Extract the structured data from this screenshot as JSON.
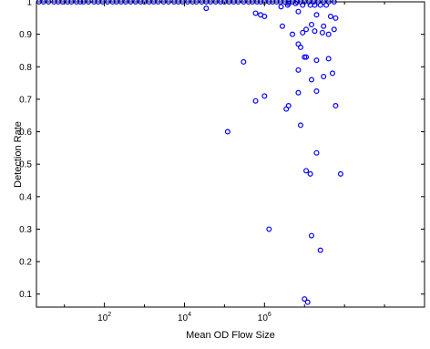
{
  "chart_data": {
    "type": "scatter",
    "xlabel": "Mean OD Flow Size",
    "ylabel": "Detection Rate",
    "x_scale": "log",
    "xlim": [
      2,
      10000000000
    ],
    "ylim": [
      0.06,
      1.0
    ],
    "grid": false,
    "marker_color": "#0000ff",
    "x_ticks": [
      {
        "value": 100,
        "base": "10",
        "exp": "2"
      },
      {
        "value": 10000,
        "base": "10",
        "exp": "4"
      },
      {
        "value": 1000000,
        "base": "10",
        "exp": "6"
      }
    ],
    "y_ticks": [
      {
        "value": 0.1,
        "label": "0.1"
      },
      {
        "value": 0.2,
        "label": "0.2"
      },
      {
        "value": 0.3,
        "label": "0.3"
      },
      {
        "value": 0.4,
        "label": "0.4"
      },
      {
        "value": 0.5,
        "label": "0.5"
      },
      {
        "value": 0.6,
        "label": "0.6"
      },
      {
        "value": 0.7,
        "label": "0.7"
      },
      {
        "value": 0.8,
        "label": "0.8"
      },
      {
        "value": 0.9,
        "label": "0.9"
      },
      {
        "value": 1.0,
        "label": "1"
      }
    ],
    "series": [
      {
        "points": [
          [
            2.3,
            1.0
          ],
          [
            3.0,
            1.0
          ],
          [
            4.0,
            1.0
          ],
          [
            5.5,
            1.0
          ],
          [
            7.0,
            1.0
          ],
          [
            9.0,
            1.0
          ],
          [
            12,
            1.0
          ],
          [
            15,
            1.0
          ],
          [
            20,
            1.0
          ],
          [
            25,
            1.0
          ],
          [
            30,
            1.0
          ],
          [
            40,
            1.0
          ],
          [
            55,
            1.0
          ],
          [
            70,
            1.0
          ],
          [
            90,
            1.0
          ],
          [
            120,
            1.0
          ],
          [
            160,
            1.0
          ],
          [
            200,
            1.0
          ],
          [
            260,
            1.0
          ],
          [
            340,
            1.0
          ],
          [
            450,
            1.0
          ],
          [
            600,
            1.0
          ],
          [
            800,
            1.0
          ],
          [
            1000,
            1.0
          ],
          [
            1300,
            1.0
          ],
          [
            1700,
            1.0
          ],
          [
            2200,
            1.0
          ],
          [
            3000,
            1.0
          ],
          [
            4000,
            1.0
          ],
          [
            5500,
            1.0
          ],
          [
            7000,
            1.0
          ],
          [
            9000,
            1.0
          ],
          [
            12000,
            1.0
          ],
          [
            16000,
            1.0
          ],
          [
            20000,
            1.0
          ],
          [
            27000,
            1.0
          ],
          [
            35000,
            1.0
          ],
          [
            45000,
            1.0
          ],
          [
            60000,
            1.0
          ],
          [
            80000,
            1.0
          ],
          [
            100000,
            1.0
          ],
          [
            130000,
            1.0
          ],
          [
            170000,
            1.0
          ],
          [
            220000,
            1.0
          ],
          [
            300000,
            1.0
          ],
          [
            400000,
            1.0
          ],
          [
            500000,
            1.0
          ],
          [
            650000,
            1.0
          ],
          [
            800000,
            1.0
          ],
          [
            1000000,
            1.0
          ],
          [
            1300000,
            1.0
          ],
          [
            1600000,
            1.0
          ],
          [
            2000000,
            1.0
          ],
          [
            2500000,
            1.0
          ],
          [
            3200000,
            1.0
          ],
          [
            4000000,
            1.0
          ],
          [
            5000000,
            1.0
          ],
          [
            6500000,
            1.0
          ],
          [
            8000000,
            1.0
          ],
          [
            10000000,
            1.0
          ],
          [
            13000000,
            1.0
          ],
          [
            17000000,
            1.0
          ],
          [
            22000000,
            1.0
          ],
          [
            30000000,
            1.0
          ],
          [
            40000000,
            1.0
          ],
          [
            55000000,
            1.0
          ],
          [
            9000000,
            0.99
          ],
          [
            14000000,
            0.99
          ],
          [
            18000000,
            0.99
          ],
          [
            25000000,
            0.99
          ],
          [
            35000000,
            0.99
          ],
          [
            4000000,
            0.995
          ],
          [
            35000,
            0.98
          ],
          [
            2600000,
            0.985
          ],
          [
            3800000,
            0.99
          ],
          [
            6000000,
            0.995
          ],
          [
            600000,
            0.965
          ],
          [
            800000,
            0.96
          ],
          [
            1000000,
            0.955
          ],
          [
            7000000,
            0.97
          ],
          [
            20000000,
            0.96
          ],
          [
            45000000,
            0.955
          ],
          [
            60000000,
            0.95
          ],
          [
            2800000,
            0.925
          ],
          [
            15000000,
            0.93
          ],
          [
            30000000,
            0.925
          ],
          [
            55000000,
            0.915
          ],
          [
            5000000,
            0.9
          ],
          [
            9000000,
            0.905
          ],
          [
            11000000,
            0.915
          ],
          [
            18000000,
            0.91
          ],
          [
            28000000,
            0.905
          ],
          [
            40000000,
            0.9
          ],
          [
            7000000,
            0.87
          ],
          [
            8000000,
            0.86
          ],
          [
            10000000,
            0.83
          ],
          [
            11000000,
            0.83
          ],
          [
            20000000,
            0.82
          ],
          [
            40000000,
            0.825
          ],
          [
            300000,
            0.815
          ],
          [
            7000000,
            0.79
          ],
          [
            30000000,
            0.77
          ],
          [
            15000000,
            0.76
          ],
          [
            50000000,
            0.78
          ],
          [
            600000,
            0.695
          ],
          [
            1000000,
            0.71
          ],
          [
            4000000,
            0.68
          ],
          [
            3500000,
            0.67
          ],
          [
            7000000,
            0.72
          ],
          [
            20000000,
            0.725
          ],
          [
            60000000,
            0.68
          ],
          [
            120000,
            0.6
          ],
          [
            8000000,
            0.62
          ],
          [
            20000000,
            0.535
          ],
          [
            11000000,
            0.48
          ],
          [
            14000000,
            0.47
          ],
          [
            80000000,
            0.47
          ],
          [
            1300000,
            0.3
          ],
          [
            15000000,
            0.28
          ],
          [
            25000000,
            0.235
          ],
          [
            10000000,
            0.085
          ],
          [
            12000000,
            0.075
          ]
        ]
      }
    ]
  }
}
